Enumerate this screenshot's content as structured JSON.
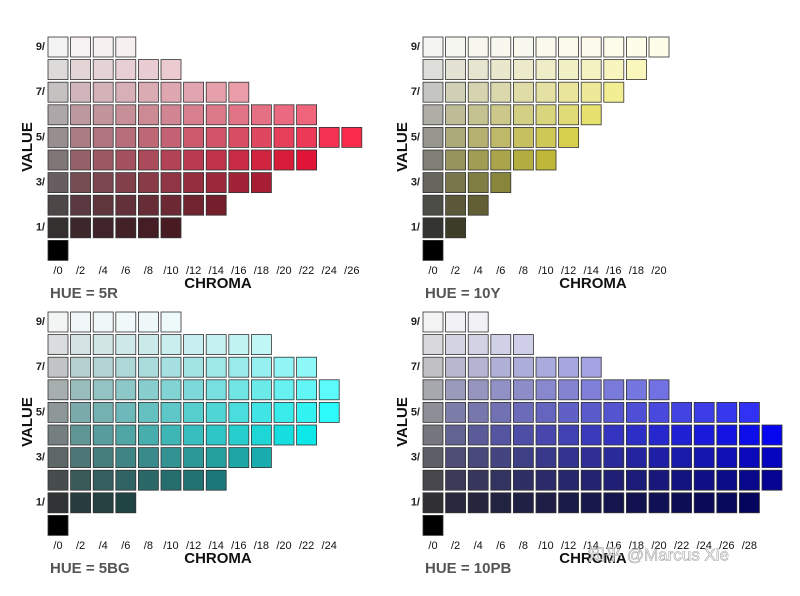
{
  "panels": [
    {
      "hue_label": "HUE = 5R",
      "value_axis_title": "VALUE",
      "chroma_axis_title": "CHROMA",
      "value_ticks": [
        "9/",
        "7/",
        "5/",
        "3/",
        "1/"
      ],
      "chroma_ticks": [
        "/0",
        "/2",
        "/4",
        "/6",
        "/8",
        "/10",
        "/12",
        "/14",
        "/16",
        "/18",
        "/20",
        "/22",
        "/24",
        "/26"
      ]
    },
    {
      "hue_label": "HUE = 10Y",
      "value_axis_title": "VALUE",
      "chroma_axis_title": "CHROMA",
      "value_ticks": [
        "9/",
        "7/",
        "5/",
        "3/",
        "1/"
      ],
      "chroma_ticks": [
        "/0",
        "/2",
        "/4",
        "/6",
        "/8",
        "/10",
        "/12",
        "/14",
        "/16",
        "/18",
        "/20"
      ]
    },
    {
      "hue_label": "HUE = 5BG",
      "value_axis_title": "VALUE",
      "chroma_axis_title": "CHROMA",
      "value_ticks": [
        "9/",
        "7/",
        "5/",
        "3/",
        "1/"
      ],
      "chroma_ticks": [
        "/0",
        "/2",
        "/4",
        "/6",
        "/8",
        "/10",
        "/12",
        "/14",
        "/16",
        "/18",
        "/20",
        "/22",
        "/24"
      ]
    },
    {
      "hue_label": "HUE = 10PB",
      "value_axis_title": "VALUE",
      "chroma_axis_title": "CHROMA",
      "value_ticks": [
        "9/",
        "7/",
        "5/",
        "3/",
        "1/"
      ],
      "chroma_ticks": [
        "/0",
        "/2",
        "/4",
        "/6",
        "/8",
        "/10",
        "/12",
        "/14",
        "/16",
        "/18",
        "/20",
        "/22",
        "/24",
        "/26",
        "/28"
      ]
    }
  ],
  "watermark": "知乎 @Marcus Xie"
}
